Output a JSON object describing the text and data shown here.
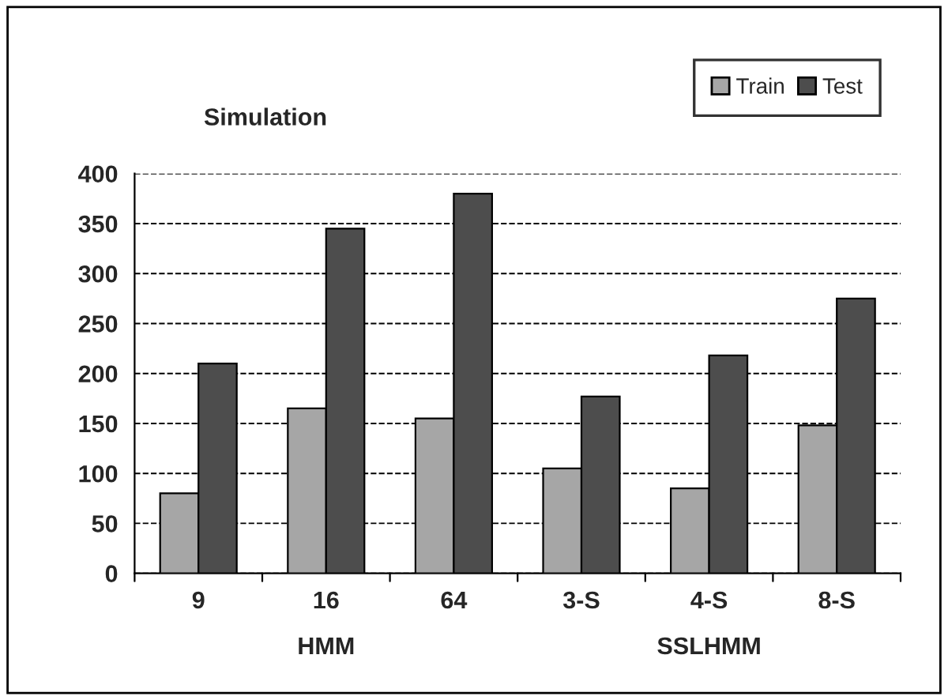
{
  "chart_data": {
    "type": "bar",
    "title": "Simulation",
    "categories": [
      "9",
      "16",
      "64",
      "3-S",
      "4-S",
      "8-S"
    ],
    "series": [
      {
        "name": "Train",
        "color": "#a6a6a6",
        "values": [
          80,
          165,
          155,
          105,
          85,
          148
        ]
      },
      {
        "name": "Test",
        "color": "#4d4d4d",
        "values": [
          210,
          345,
          380,
          177,
          218,
          275
        ]
      }
    ],
    "ylim": [
      0,
      400
    ],
    "yticks": [
      0,
      50,
      100,
      150,
      200,
      250,
      300,
      350,
      400
    ],
    "grid": "y",
    "legend": "top right",
    "annotations": [
      "HMM",
      "SSLHMM"
    ]
  }
}
